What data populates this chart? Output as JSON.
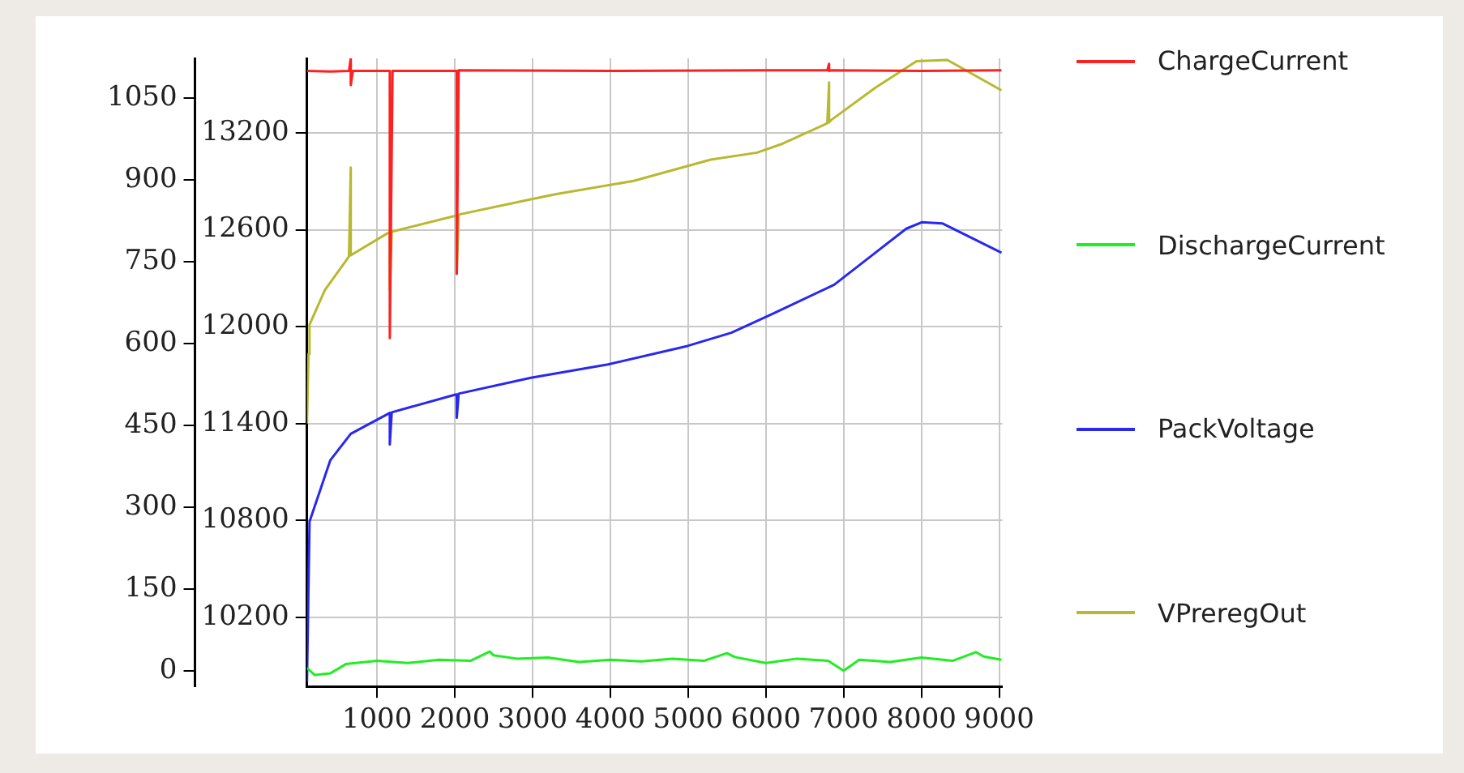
{
  "chart_data": {
    "type": "line",
    "xlim": [
      100,
      9040
    ],
    "xticks": [
      1000,
      2000,
      3000,
      4000,
      5000,
      6000,
      7000,
      8000,
      9000
    ],
    "ylim": [
      -29,
      1123
    ],
    "yticks": [
      0,
      150,
      300,
      450,
      600,
      750,
      900,
      1050
    ],
    "y2lim": [
      9772,
      13662
    ],
    "y2ticks": [
      10200,
      10800,
      11400,
      12000,
      12600,
      13200
    ],
    "grid": true,
    "legend": "right",
    "marker": "none",
    "line_style": "solid",
    "series": [
      {
        "name": "ChargeCurrent",
        "color": "#ff2020",
        "x": [
          100,
          400,
          640,
          663,
          663,
          690,
          1100,
          1165,
          1165,
          1200,
          2000,
          2026,
          2026,
          2050,
          4000,
          6000,
          6790,
          6813,
          6813,
          6840,
          8000,
          9029
        ],
        "values": [
          1100,
          1099,
          1100,
          1123,
          1074,
          1100,
          1100,
          1100,
          610,
          1100,
          1100,
          1100,
          728,
          1101,
          1100,
          1101,
          1101,
          1113,
          1100,
          1101,
          1100,
          1101
        ]
      },
      {
        "name": "DischargeCurrent",
        "color": "#20ee20",
        "x": [
          100,
          200,
          400,
          600,
          800,
          1000,
          1400,
          1800,
          2200,
          2450,
          2500,
          2800,
          3200,
          3600,
          4000,
          4400,
          4800,
          5200,
          5500,
          5600,
          6000,
          6400,
          6800,
          7000,
          7200,
          7600,
          8000,
          8400,
          8700,
          8800,
          9029
        ],
        "values": [
          5,
          -8,
          -5,
          12,
          15,
          18,
          14,
          20,
          18,
          35,
          28,
          22,
          24,
          16,
          20,
          17,
          22,
          18,
          32,
          25,
          14,
          22,
          18,
          0,
          20,
          16,
          24,
          18,
          34,
          26,
          20
        ]
      },
      {
        "name": "PackVoltage",
        "color": "#2828f0",
        "axis": "y2",
        "x": [
          100,
          133,
          399,
          663,
          1140,
          1165,
          1165,
          1190,
          2000,
          2026,
          2026,
          2050,
          2978,
          3970,
          4994,
          5557,
          6085,
          6879,
          7408,
          7805,
          8004,
          8268,
          9029
        ],
        "values": [
          9800,
          10793,
          11172,
          11337,
          11460,
          11466,
          11271,
          11470,
          11578,
          11581,
          11436,
          11585,
          11684,
          11766,
          11881,
          11963,
          12079,
          12260,
          12458,
          12607,
          12647,
          12640,
          12458
        ]
      },
      {
        "name": "VPreregOut",
        "color": "#b8b832",
        "axis": "y2",
        "x": [
          100,
          120,
          133,
          331,
          640,
          663,
          663,
          690,
          1140,
          1165,
          1165,
          1190,
          2000,
          2026,
          2026,
          2050,
          2978,
          3307,
          4300,
          5292,
          5887,
          6218,
          6790,
          6813,
          6813,
          6840,
          7408,
          7937,
          8334,
          9029
        ],
        "values": [
          11400,
          11832,
          12013,
          12228,
          12435,
          12986,
          12442,
          12450,
          12580,
          12584,
          12228,
          12588,
          12686,
          12690,
          12327,
          12694,
          12789,
          12821,
          12903,
          13035,
          13078,
          13134,
          13260,
          13513,
          13266,
          13280,
          13480,
          13645,
          13652,
          13464
        ]
      }
    ]
  }
}
